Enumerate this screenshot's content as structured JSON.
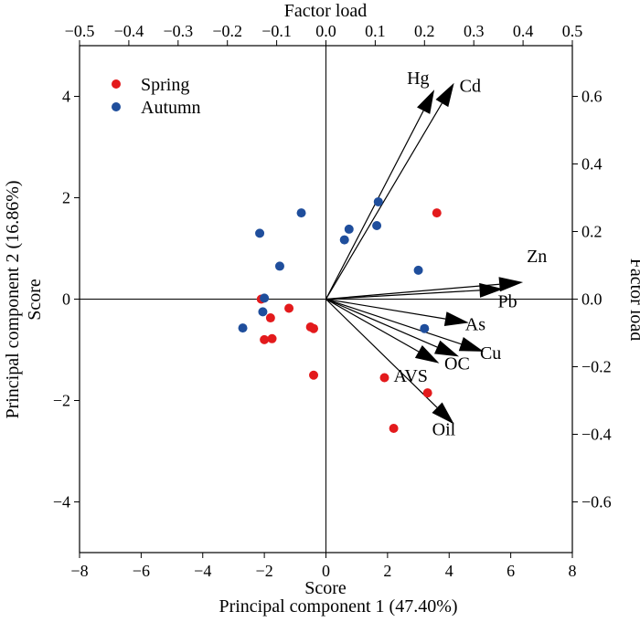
{
  "chart_data": {
    "type": "scatter",
    "subtype": "PCA biplot",
    "axes": {
      "bottom": {
        "title_top": "Score",
        "title": "Principal component 1 (47.40%)",
        "range": [
          -8,
          8
        ],
        "ticks": [
          -8,
          -6,
          -4,
          -2,
          0,
          2,
          4,
          6,
          8
        ],
        "tick_labels": [
          "−8",
          "−6",
          "−4",
          "−2",
          "0",
          "2",
          "4",
          "6",
          "8"
        ]
      },
      "left": {
        "title_inner": "Score",
        "title": "Principal component 2 (16.86%)",
        "range": [
          -5,
          5
        ],
        "ticks": [
          -4,
          -2,
          0,
          2,
          4
        ],
        "tick_labels": [
          "−4",
          "−2",
          "0",
          "2",
          "4"
        ]
      },
      "top": {
        "title": "Factor load",
        "range": [
          -0.5,
          0.5
        ],
        "ticks": [
          -0.5,
          -0.4,
          -0.3,
          -0.2,
          -0.1,
          0.0,
          0.1,
          0.2,
          0.3,
          0.4,
          0.5
        ],
        "tick_labels": [
          "−0.5",
          "−0.4",
          "−0.3",
          "−0.2",
          "−0.1",
          "0.0",
          "0.1",
          "0.2",
          "0.3",
          "0.4",
          "0.5"
        ]
      },
      "right": {
        "title": "Factor load",
        "range": [
          -0.75,
          0.75
        ],
        "ticks": [
          -0.6,
          -0.4,
          -0.2,
          0.0,
          0.2,
          0.4,
          0.6
        ],
        "tick_labels": [
          "−0.6",
          "−0.4",
          "−0.2",
          "0.0",
          "0.2",
          "0.4",
          "0.6"
        ]
      }
    },
    "legend": {
      "position": "top-left",
      "entries": [
        {
          "name": "Spring",
          "color": "#e31a1c"
        },
        {
          "name": "Autumn",
          "color": "#1f4e9c"
        }
      ]
    },
    "series": [
      {
        "name": "Spring",
        "color": "#e31a1c",
        "points": [
          {
            "x": -2.1,
            "y": 0.0
          },
          {
            "x": -1.8,
            "y": -0.37
          },
          {
            "x": -1.2,
            "y": -0.18
          },
          {
            "x": -0.5,
            "y": -0.55
          },
          {
            "x": -0.4,
            "y": -0.58
          },
          {
            "x": -2.0,
            "y": -0.8
          },
          {
            "x": -1.75,
            "y": -0.78
          },
          {
            "x": -0.4,
            "y": -1.5
          },
          {
            "x": 1.9,
            "y": -1.55
          },
          {
            "x": 2.2,
            "y": -2.55
          },
          {
            "x": 3.3,
            "y": -1.85
          },
          {
            "x": 3.6,
            "y": 1.7
          }
        ]
      },
      {
        "name": "Autumn",
        "color": "#1f4e9c",
        "points": [
          {
            "x": -2.15,
            "y": 1.3
          },
          {
            "x": -0.8,
            "y": 1.7
          },
          {
            "x": -1.5,
            "y": 0.65
          },
          {
            "x": -2.0,
            "y": 0.02
          },
          {
            "x": -2.05,
            "y": -0.25
          },
          {
            "x": -2.7,
            "y": -0.57
          },
          {
            "x": 0.6,
            "y": 1.17
          },
          {
            "x": 0.75,
            "y": 1.38
          },
          {
            "x": 1.7,
            "y": 1.92
          },
          {
            "x": 1.65,
            "y": 1.45
          },
          {
            "x": 3.0,
            "y": 0.57
          },
          {
            "x": 3.2,
            "y": -0.58
          }
        ]
      }
    ],
    "loadings": [
      {
        "name": "Hg",
        "x": 0.22,
        "y": 0.62
      },
      {
        "name": "Cd",
        "x": 0.26,
        "y": 0.64
      },
      {
        "name": "Zn",
        "x": 0.4,
        "y": 0.05
      },
      {
        "name": "Pb",
        "x": 0.36,
        "y": 0.03
      },
      {
        "name": "As",
        "x": 0.29,
        "y": -0.07
      },
      {
        "name": "Cu",
        "x": 0.32,
        "y": -0.155
      },
      {
        "name": "OC",
        "x": 0.27,
        "y": -0.17
      },
      {
        "name": "AVS",
        "x": 0.23,
        "y": -0.19
      },
      {
        "name": "Oil",
        "x": 0.26,
        "y": -0.37
      }
    ]
  }
}
